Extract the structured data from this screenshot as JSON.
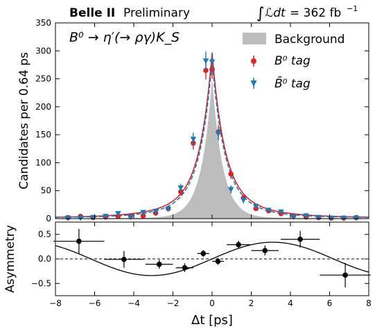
{
  "header": {
    "experiment": "Belle II",
    "status": "Preliminary",
    "luminosity_prefix": "∫",
    "luminosity_var": "ℒdt",
    "luminosity_value": "= 362 fb",
    "luminosity_exp": "−1"
  },
  "chart_data": [
    {
      "type": "histogram",
      "panel": "top",
      "title": "",
      "process_label": "B⁰ → η′(→ ργ)K_S",
      "ylabel": "Candidates per 0.64 ps",
      "xlim": [
        -8,
        8
      ],
      "ylim": [
        0,
        350
      ],
      "yticks": [
        0,
        50,
        100,
        150,
        200,
        250,
        300,
        350
      ],
      "xticks": [
        -8,
        -6,
        -4,
        -2,
        0,
        2,
        4,
        6,
        8
      ],
      "grid": false,
      "legend_position": "top-right",
      "legend": [
        "Background",
        "B⁰ tag",
        "B̄⁰ tag"
      ],
      "colors": {
        "b0": "#d62728",
        "b0bar": "#1f77b4",
        "background": "#bdbdbd"
      },
      "background_peak": 250,
      "series": [
        {
          "name": "B⁰ tag",
          "x": [
            -7.36,
            -6.72,
            -6.08,
            -5.44,
            -4.8,
            -4.16,
            -3.52,
            -2.88,
            -2.24,
            -1.6,
            -0.96,
            -0.32,
            0.0,
            0.32,
            0.96,
            1.6,
            2.24,
            2.88,
            3.52,
            4.16,
            4.8,
            5.44,
            6.08,
            6.72,
            7.36
          ],
          "y": [
            2,
            4,
            2,
            3,
            4,
            5,
            5,
            10,
            18,
            48,
            135,
            265,
            267,
            155,
            80,
            37,
            18,
            14,
            9,
            5,
            3,
            2,
            1,
            1,
            2
          ],
          "err": [
            1.4,
            2,
            1.4,
            1.7,
            2,
            2.2,
            2.2,
            3.2,
            4.2,
            7,
            11.6,
            16.3,
            16.3,
            12.4,
            9,
            6,
            4.2,
            3.7,
            3,
            2.2,
            1.7,
            1.4,
            1,
            1,
            1.4
          ]
        },
        {
          "name": "B̄⁰ tag",
          "x": [
            -7.36,
            -6.72,
            -6.08,
            -5.44,
            -4.8,
            -4.16,
            -3.52,
            -2.88,
            -2.24,
            -1.6,
            -0.96,
            -0.32,
            0.0,
            0.32,
            0.96,
            1.6,
            2.24,
            2.88,
            3.52,
            4.16,
            4.8,
            5.44,
            6.08,
            6.72,
            7.36
          ],
          "y": [
            1,
            1,
            2,
            4,
            9,
            3,
            11,
            13,
            17,
            55,
            142,
            282,
            280,
            152,
            52,
            33,
            22,
            15,
            12,
            3,
            5,
            2,
            1,
            1,
            1
          ],
          "err": [
            1,
            1,
            1.4,
            2,
            3,
            1.7,
            3.3,
            3.6,
            4.1,
            7.4,
            11.9,
            16.8,
            16.7,
            12.3,
            7.2,
            5.7,
            4.7,
            3.9,
            3.5,
            1.7,
            2.2,
            1.4,
            1,
            1,
            1
          ]
        }
      ],
      "fit_curves": [
        {
          "name": "B⁰ tag fit",
          "style": "solid",
          "peak": 295
        },
        {
          "name": "B̄⁰ tag fit",
          "style": "dashed",
          "peak": 280
        }
      ]
    },
    {
      "type": "scatter",
      "panel": "bottom",
      "title": "",
      "xlabel": "Δt [ps]",
      "ylabel": "Asymmetry",
      "xlim": [
        -8,
        8
      ],
      "ylim": [
        -0.75,
        0.75
      ],
      "yticks": [
        -0.5,
        0.0,
        0.5
      ],
      "yticklabels": [
        "−0.5",
        "0.0",
        "0.5"
      ],
      "xticks": [
        -8,
        -6,
        -4,
        -2,
        0,
        2,
        4,
        6,
        8
      ],
      "xticklabels": [
        "−8",
        "−6",
        "−4",
        "−2",
        "0",
        "2",
        "4",
        "6",
        "8"
      ],
      "points": [
        {
          "x": -6.8,
          "y": 0.36,
          "xerr": 1.3,
          "yerr": 0.25
        },
        {
          "x": -4.5,
          "y": -0.01,
          "xerr": 1.0,
          "yerr": 0.17
        },
        {
          "x": -2.7,
          "y": -0.11,
          "xerr": 0.7,
          "yerr": 0.09
        },
        {
          "x": -1.4,
          "y": -0.18,
          "xerr": 0.45,
          "yerr": 0.09
        },
        {
          "x": -0.45,
          "y": 0.11,
          "xerr": 0.3,
          "yerr": 0.07
        },
        {
          "x": 0.3,
          "y": -0.05,
          "xerr": 0.3,
          "yerr": 0.07
        },
        {
          "x": 1.35,
          "y": 0.29,
          "xerr": 0.6,
          "yerr": 0.08
        },
        {
          "x": 2.7,
          "y": 0.17,
          "xerr": 0.7,
          "yerr": 0.1
        },
        {
          "x": 4.5,
          "y": 0.4,
          "xerr": 1.0,
          "yerr": 0.17
        },
        {
          "x": 6.8,
          "y": -0.33,
          "xerr": 1.3,
          "yerr": 0.25
        }
      ],
      "fit_amplitude": 0.34,
      "fit_omega": 0.507,
      "zero_line": true
    }
  ]
}
